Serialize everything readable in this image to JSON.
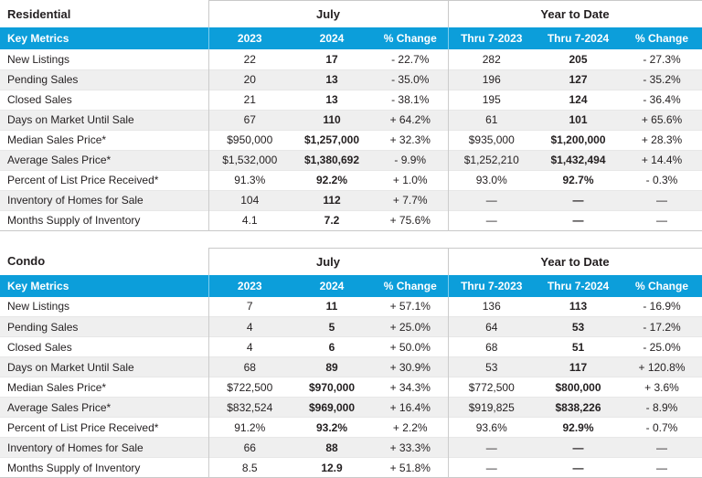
{
  "colors": {
    "accent_blue": "#0C9EDA",
    "stripe_gray": "#EFEFEF",
    "border_gray": "#C9C9C9",
    "header_text": "#FFFFFF",
    "body_text": "#231F20"
  },
  "tables": [
    {
      "title": "Residential",
      "month_group": "July",
      "ytd_group": "Year to Date",
      "key_metrics_label": "Key Metrics",
      "columns": [
        "2023",
        "2024",
        "% Change",
        "Thru 7-2023",
        "Thru 7-2024",
        "% Change"
      ],
      "rows": [
        {
          "label": "New Listings",
          "m2023": "22",
          "m2024": "17",
          "mchange": "- 22.7%",
          "y2023": "282",
          "y2024": "205",
          "ychange": "- 27.3%"
        },
        {
          "label": "Pending Sales",
          "m2023": "20",
          "m2024": "13",
          "mchange": "- 35.0%",
          "y2023": "196",
          "y2024": "127",
          "ychange": "- 35.2%"
        },
        {
          "label": "Closed Sales",
          "m2023": "21",
          "m2024": "13",
          "mchange": "- 38.1%",
          "y2023": "195",
          "y2024": "124",
          "ychange": "- 36.4%"
        },
        {
          "label": "Days on Market Until Sale",
          "m2023": "67",
          "m2024": "110",
          "mchange": "+ 64.2%",
          "y2023": "61",
          "y2024": "101",
          "ychange": "+ 65.6%"
        },
        {
          "label": "Median Sales Price*",
          "m2023": "$950,000",
          "m2024": "$1,257,000",
          "mchange": "+ 32.3%",
          "y2023": "$935,000",
          "y2024": "$1,200,000",
          "ychange": "+ 28.3%"
        },
        {
          "label": "Average Sales Price*",
          "m2023": "$1,532,000",
          "m2024": "$1,380,692",
          "mchange": "- 9.9%",
          "y2023": "$1,252,210",
          "y2024": "$1,432,494",
          "ychange": "+ 14.4%"
        },
        {
          "label": "Percent of List Price Received*",
          "m2023": "91.3%",
          "m2024": "92.2%",
          "mchange": "+ 1.0%",
          "y2023": "93.0%",
          "y2024": "92.7%",
          "ychange": "- 0.3%"
        },
        {
          "label": "Inventory of Homes for Sale",
          "m2023": "104",
          "m2024": "112",
          "mchange": "+ 7.7%",
          "y2023": "—",
          "y2024": "—",
          "ychange": "—"
        },
        {
          "label": "Months Supply of Inventory",
          "m2023": "4.1",
          "m2024": "7.2",
          "mchange": "+ 75.6%",
          "y2023": "—",
          "y2024": "—",
          "ychange": "—"
        }
      ]
    },
    {
      "title": "Condo",
      "month_group": "July",
      "ytd_group": "Year to Date",
      "key_metrics_label": "Key Metrics",
      "columns": [
        "2023",
        "2024",
        "% Change",
        "Thru 7-2023",
        "Thru 7-2024",
        "% Change"
      ],
      "rows": [
        {
          "label": "New Listings",
          "m2023": "7",
          "m2024": "11",
          "mchange": "+ 57.1%",
          "y2023": "136",
          "y2024": "113",
          "ychange": "- 16.9%"
        },
        {
          "label": "Pending Sales",
          "m2023": "4",
          "m2024": "5",
          "mchange": "+ 25.0%",
          "y2023": "64",
          "y2024": "53",
          "ychange": "- 17.2%"
        },
        {
          "label": "Closed Sales",
          "m2023": "4",
          "m2024": "6",
          "mchange": "+ 50.0%",
          "y2023": "68",
          "y2024": "51",
          "ychange": "- 25.0%"
        },
        {
          "label": "Days on Market Until Sale",
          "m2023": "68",
          "m2024": "89",
          "mchange": "+ 30.9%",
          "y2023": "53",
          "y2024": "117",
          "ychange": "+ 120.8%"
        },
        {
          "label": "Median Sales Price*",
          "m2023": "$722,500",
          "m2024": "$970,000",
          "mchange": "+ 34.3%",
          "y2023": "$772,500",
          "y2024": "$800,000",
          "ychange": "+ 3.6%"
        },
        {
          "label": "Average Sales Price*",
          "m2023": "$832,524",
          "m2024": "$969,000",
          "mchange": "+ 16.4%",
          "y2023": "$919,825",
          "y2024": "$838,226",
          "ychange": "- 8.9%"
        },
        {
          "label": "Percent of List Price Received*",
          "m2023": "91.2%",
          "m2024": "93.2%",
          "mchange": "+ 2.2%",
          "y2023": "93.6%",
          "y2024": "92.9%",
          "ychange": "- 0.7%"
        },
        {
          "label": "Inventory of Homes for Sale",
          "m2023": "66",
          "m2024": "88",
          "mchange": "+ 33.3%",
          "y2023": "—",
          "y2024": "—",
          "ychange": "—"
        },
        {
          "label": "Months Supply of Inventory",
          "m2023": "8.5",
          "m2024": "12.9",
          "mchange": "+ 51.8%",
          "y2023": "—",
          "y2024": "—",
          "ychange": "—"
        }
      ]
    }
  ]
}
